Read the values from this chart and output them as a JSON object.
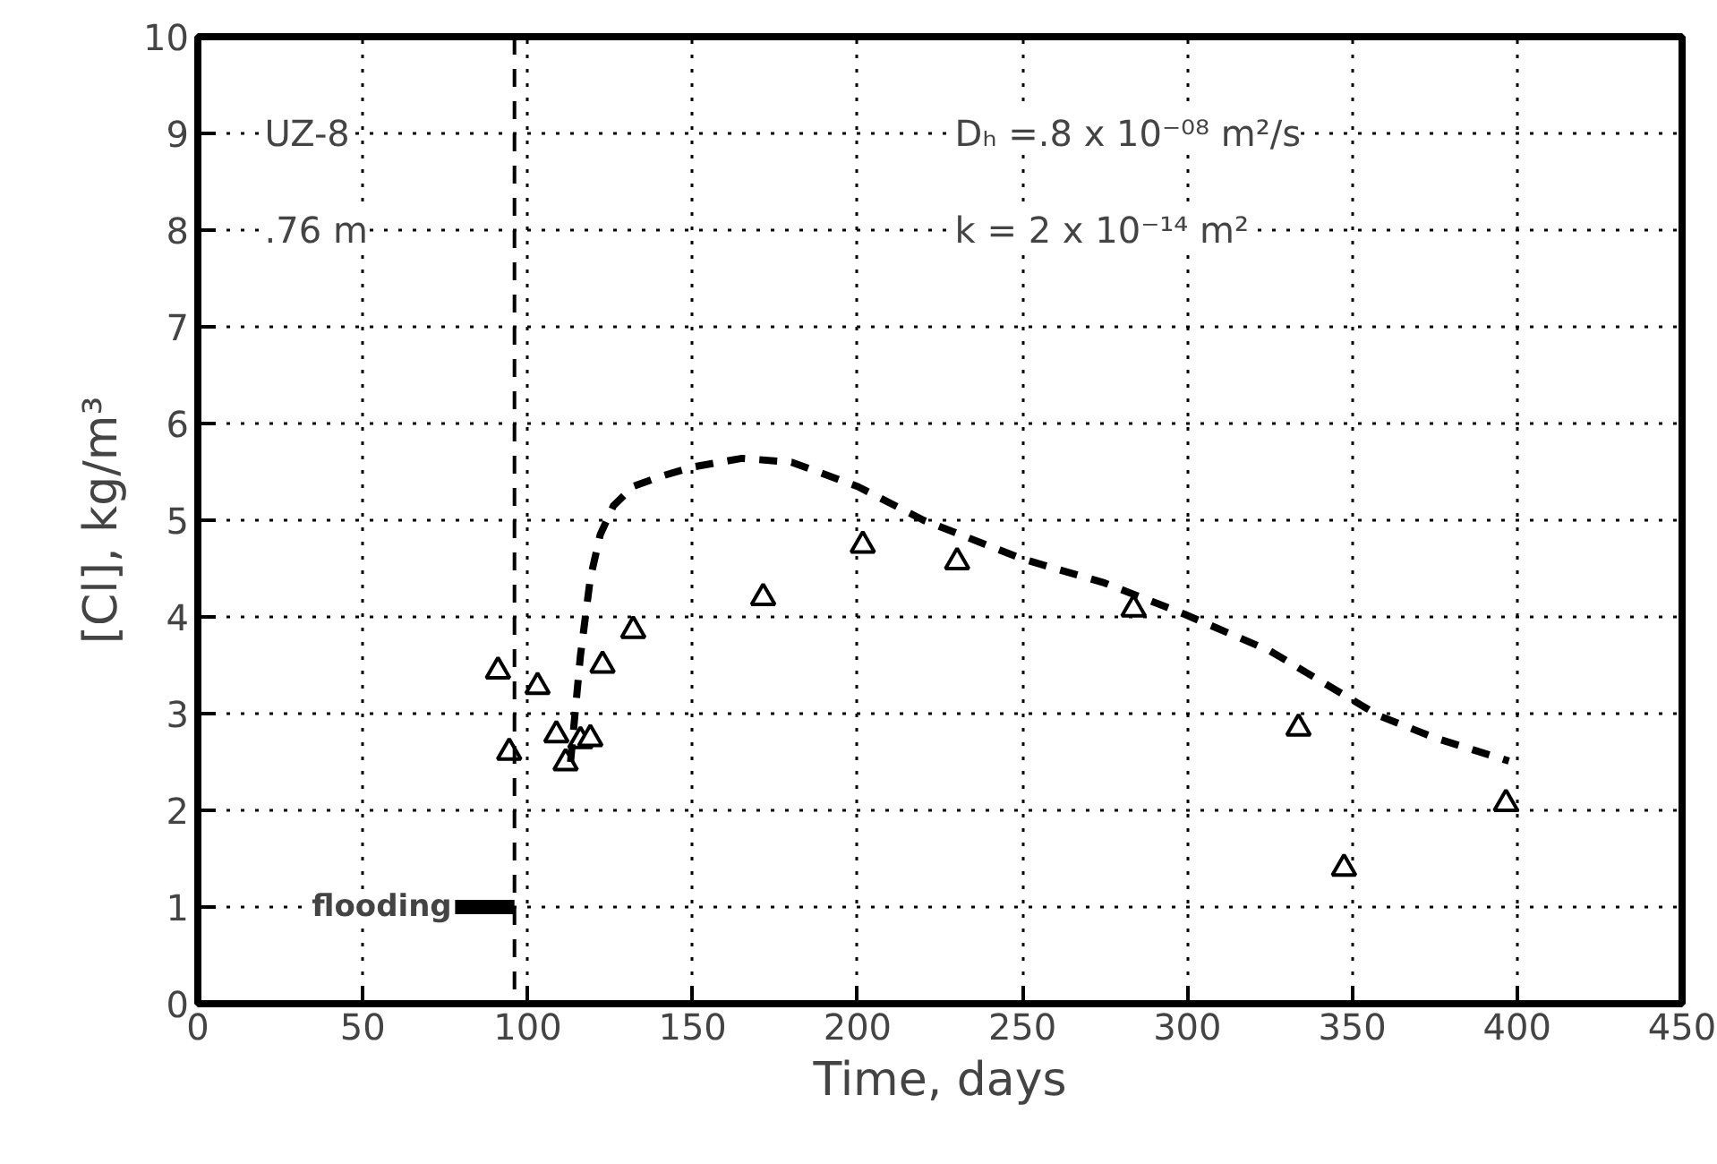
{
  "chart_data": {
    "type": "scatter",
    "xlabel": "Time, days",
    "ylabel": "[Cl], kg/m³",
    "xlim": [
      0,
      450
    ],
    "ylim": [
      0,
      10
    ],
    "xticks": [
      0,
      50,
      100,
      150,
      200,
      250,
      300,
      350,
      400,
      450
    ],
    "yticks": [
      0,
      1,
      2,
      3,
      4,
      5,
      6,
      7,
      8,
      9,
      10
    ],
    "grid": true,
    "series": [
      {
        "marker": "triangle",
        "color": "#000000",
        "x": [
          91,
          94.4,
          103,
          108.7,
          111.5,
          116,
          119,
          122.7,
          132,
          171.4,
          201.6,
          230.2,
          283.7,
          333.7,
          347.5,
          396.6
        ],
        "values": [
          3.44,
          2.6,
          3.28,
          2.78,
          2.49,
          2.72,
          2.74,
          3.5,
          3.86,
          4.2,
          4.74,
          4.57,
          4.08,
          2.85,
          1.4,
          2.07
        ]
      },
      {
        "type": "line",
        "line_style": "dashed",
        "color": "#000000",
        "x": [
          113,
          116,
          119,
          122,
          126,
          132,
          140,
          150,
          165,
          180,
          200,
          220,
          250,
          275,
          299,
          325,
          358,
          375,
          397.5
        ],
        "values": [
          2.5,
          3.6,
          4.4,
          4.85,
          5.15,
          5.35,
          5.45,
          5.55,
          5.64,
          5.6,
          5.35,
          5.0,
          4.6,
          4.35,
          4.03,
          3.65,
          2.98,
          2.75,
          2.51
        ]
      }
    ],
    "ref_lines": [
      {
        "axis": "x",
        "value": 96,
        "label": "flooding",
        "line_style": "dashed",
        "color": "#000000"
      }
    ],
    "annotations": [
      "UZ-8",
      ".76 m",
      "Dₕ =.8 x 10⁻⁰⁸ m²/s",
      "k = 2 x 10⁻¹⁴ m²"
    ]
  }
}
